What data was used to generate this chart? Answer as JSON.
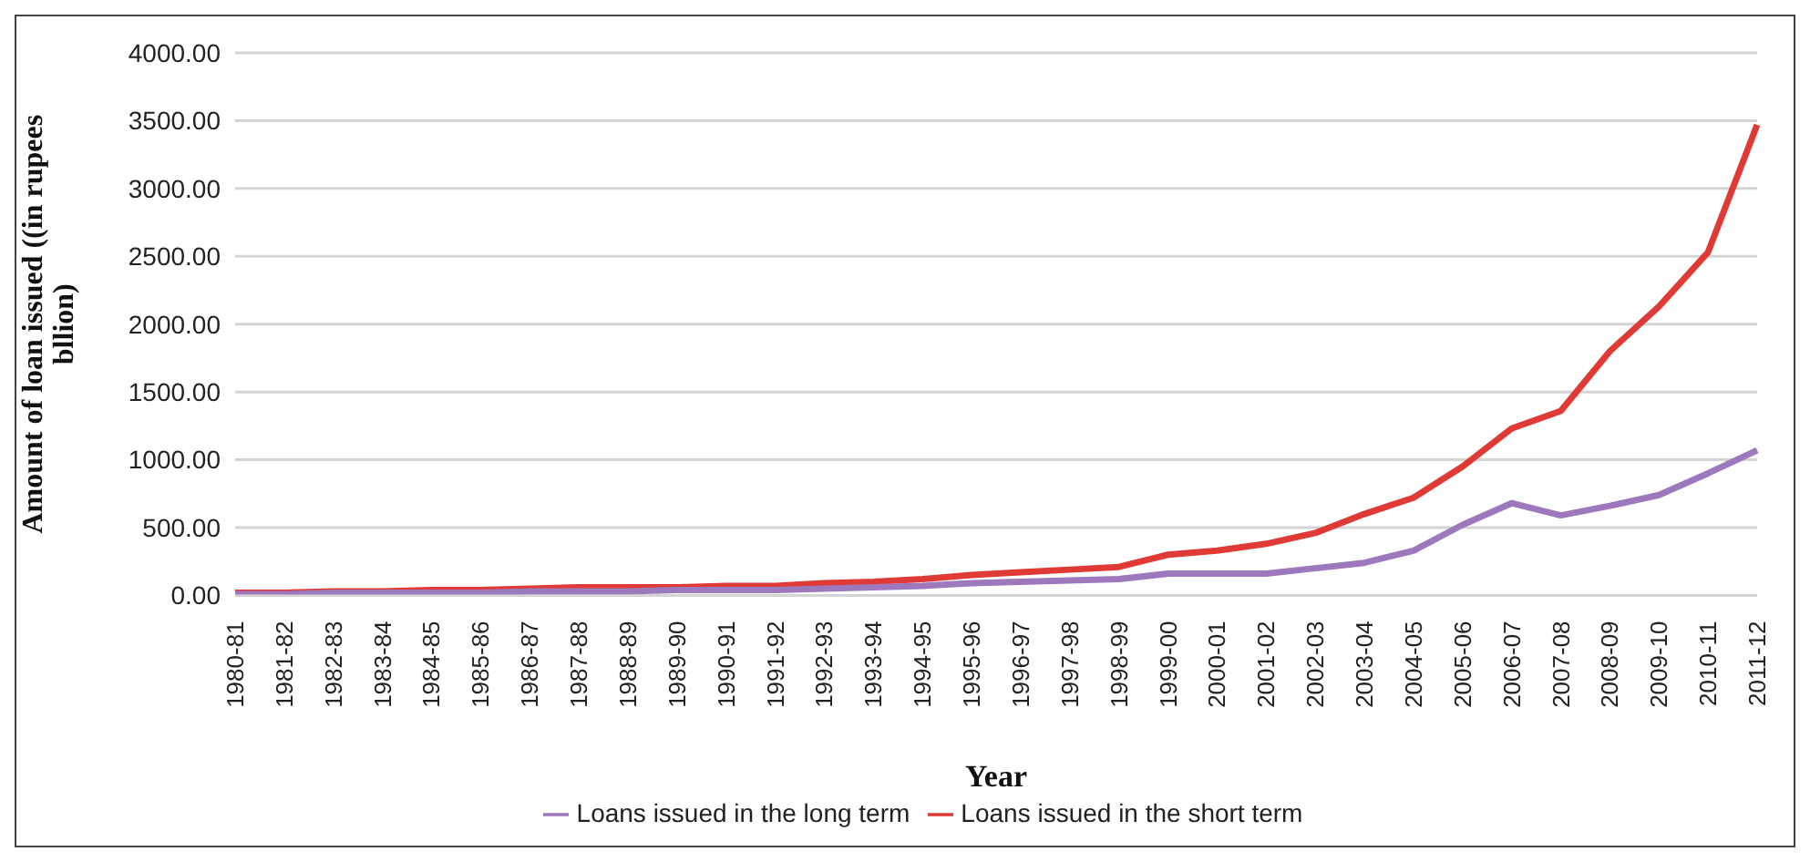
{
  "chart_data": {
    "type": "line",
    "xlabel": "Year",
    "ylabel": "Amount of loan issued ((in rupees bllion)",
    "categories": [
      "1980-81",
      "1981-82",
      "1982-83",
      "1983-84",
      "1984-85",
      "1985-86",
      "1986-87",
      "1987-88",
      "1988-89",
      "1989-90",
      "1990-91",
      "1991-92",
      "1992-93",
      "1993-94",
      "1994-95",
      "1995-96",
      "1996-97",
      "1997-98",
      "1998-99",
      "1999-00",
      "2000-01",
      "2001-02",
      "2002-03",
      "2003-04",
      "2004-05",
      "2005-06",
      "2006-07",
      "2007-08",
      "2008-09",
      "2009-10",
      "2010-11",
      "2011-12"
    ],
    "series": [
      {
        "name": "Loans issued  in the short term",
        "color": "#e03a36",
        "values": [
          20,
          20,
          30,
          30,
          40,
          40,
          50,
          60,
          60,
          60,
          70,
          70,
          90,
          100,
          120,
          150,
          170,
          190,
          210,
          300,
          330,
          380,
          460,
          600,
          720,
          950,
          1230,
          1360,
          1800,
          2130,
          2530,
          3470
        ]
      },
      {
        "name": "Loans issued  in the long term",
        "color": "#9e78bc",
        "values": [
          10,
          10,
          20,
          20,
          20,
          20,
          30,
          30,
          30,
          40,
          40,
          40,
          50,
          60,
          70,
          90,
          100,
          110,
          120,
          160,
          160,
          160,
          200,
          240,
          330,
          520,
          680,
          590,
          660,
          740,
          900,
          1070
        ]
      }
    ],
    "ylim": [
      0,
      4000
    ],
    "yticks": [
      {
        "value": 0,
        "label": "0.00"
      },
      {
        "value": 500,
        "label": "500.00"
      },
      {
        "value": 1000,
        "label": "1000.00"
      },
      {
        "value": 1500,
        "label": "1500.00"
      },
      {
        "value": 2000,
        "label": "2000.00"
      },
      {
        "value": 2500,
        "label": "2500.00"
      },
      {
        "value": 3000,
        "label": "3000.00"
      },
      {
        "value": 3500,
        "label": "3500.00"
      },
      {
        "value": 4000,
        "label": "4000.00"
      }
    ],
    "grid": "y",
    "legend": "bottom",
    "marker": "none",
    "line_style": "solid"
  }
}
